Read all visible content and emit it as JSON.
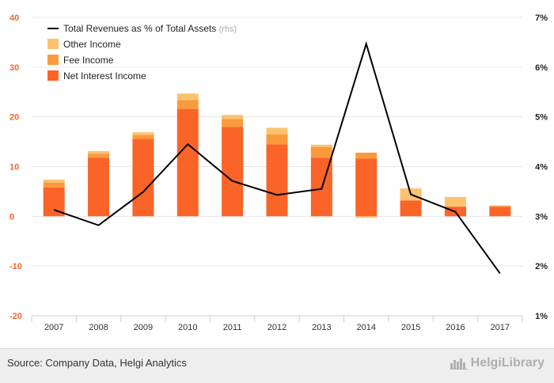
{
  "chart_data": {
    "type": "bar",
    "categories": [
      "2007",
      "2008",
      "2009",
      "2010",
      "2011",
      "2012",
      "2013",
      "2014",
      "2015",
      "2016",
      "2017"
    ],
    "series": [
      {
        "name": "Net Interest Income",
        "type": "bar",
        "axis": "left",
        "color": "#fa6428",
        "values": [
          5.8,
          11.8,
          15.6,
          21.6,
          18.0,
          14.5,
          11.8,
          11.6,
          3.2,
          1.9,
          1.9
        ]
      },
      {
        "name": "Fee Income",
        "type": "bar",
        "axis": "left",
        "color": "#fb9a3c",
        "values": [
          1.0,
          0.8,
          0.8,
          1.8,
          1.6,
          2.0,
          2.1,
          1.2,
          0.0,
          0.1,
          0.2
        ]
      },
      {
        "name": "Other Income",
        "type": "bar",
        "axis": "left",
        "color": "#fcc270",
        "values": [
          0.6,
          0.5,
          0.5,
          1.3,
          0.8,
          1.3,
          0.5,
          -0.3,
          2.4,
          1.9,
          0.1
        ]
      },
      {
        "name": "Total Revenues as % of Total Assets",
        "type": "line",
        "axis": "right",
        "color": "#000000",
        "values": [
          3.13,
          2.82,
          3.49,
          4.45,
          3.71,
          3.43,
          3.55,
          6.47,
          3.44,
          3.09,
          1.85
        ]
      }
    ],
    "legend_suffix": "(rhs)",
    "ylim_left": [
      -20,
      40
    ],
    "yticks_left": [
      "40",
      "30",
      "20",
      "10",
      "0",
      "-10",
      "-20"
    ],
    "ylim_right": [
      1,
      7
    ],
    "yticks_right": [
      "7%",
      "6%",
      "5%",
      "4%",
      "3%",
      "2%",
      "1%"
    ],
    "legend_position": "top-left",
    "grid": true
  },
  "footer": {
    "source": "Source: Company Data, Helgi Analytics",
    "logo_text": "HelgiLibrary",
    "logo_icon": "city-skyline-icon"
  }
}
